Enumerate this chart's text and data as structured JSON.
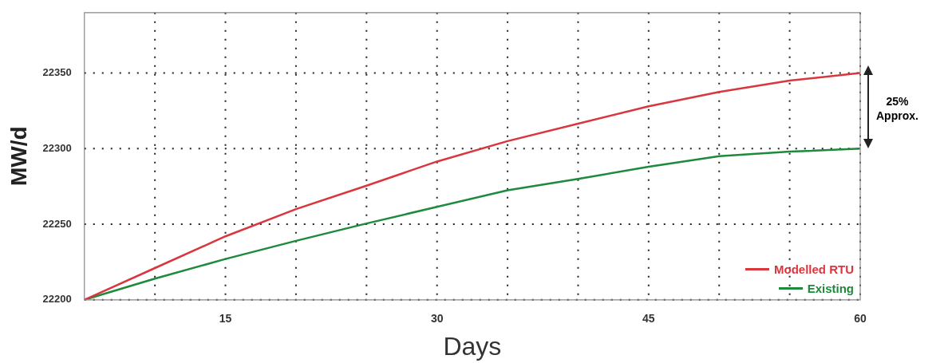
{
  "chart_data": {
    "type": "line",
    "xlabel": "Days",
    "ylabel": "MW/d",
    "x": [
      5,
      10,
      15,
      20,
      25,
      30,
      35,
      40,
      45,
      50,
      55,
      60
    ],
    "series": [
      {
        "name": "Modelled RTU",
        "color": "#d9363e",
        "values": [
          22200,
          22221,
          22242,
          22260,
          22275.5,
          22291.5,
          22305,
          22316.5,
          22328,
          22337.5,
          22345,
          22350
        ]
      },
      {
        "name": "Existing",
        "color": "#1e8a3c",
        "values": [
          22200,
          22214,
          22227,
          22239,
          22250.5,
          22261.5,
          22272.5,
          22280,
          22288,
          22295,
          22298,
          22300
        ]
      }
    ],
    "xlim": [
      5,
      60
    ],
    "xticks": [
      {
        "value": 10,
        "label": null
      },
      15,
      {
        "value": 20,
        "label": null
      },
      {
        "value": 25,
        "label": null
      },
      30,
      {
        "value": 35,
        "label": null
      },
      {
        "value": 40,
        "label": null
      },
      45,
      {
        "value": 50,
        "label": null
      },
      {
        "value": 55,
        "label": null
      },
      60
    ],
    "ylim": [
      22200,
      22390
    ],
    "yticks": [
      22200,
      22250,
      22300,
      22350
    ],
    "grid": true,
    "legend": "bottom right",
    "marker": "none",
    "line_style": "solid",
    "annotations": [
      "25% Approx."
    ]
  }
}
